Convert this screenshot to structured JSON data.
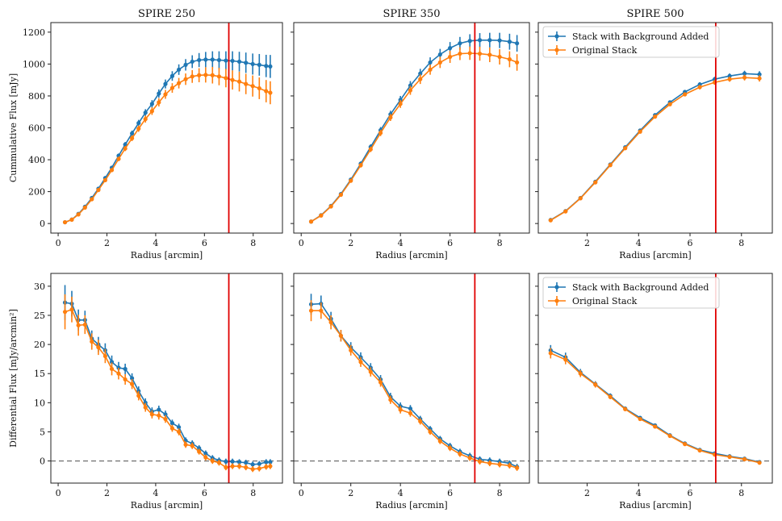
{
  "colors": {
    "blue": "#1f77b4",
    "orange": "#ff7f0e",
    "vline": "#e00000",
    "dashed": "#777777",
    "axis": "#222222",
    "legend_border": "#cccccc"
  },
  "chart_data": [
    {
      "type": "line",
      "panel": "top-1",
      "title": "SPIRE 250",
      "xlabel": "Radius [arcmin]",
      "ylabel": "Cummulative Flux [mJy]",
      "xlim": [
        -0.3,
        9.2
      ],
      "ylim": [
        -60,
        1260
      ],
      "xticks": [
        0,
        2,
        4,
        6,
        8
      ],
      "yticks": [
        0,
        200,
        400,
        600,
        800,
        1000,
        1200
      ],
      "vline": 7,
      "hline": null,
      "legend": false,
      "series": [
        {
          "name": "Stack with Background Added",
          "color": "#1f77b4",
          "x": [
            0.28,
            0.56,
            0.83,
            1.1,
            1.38,
            1.65,
            1.93,
            2.2,
            2.48,
            2.75,
            3.03,
            3.3,
            3.58,
            3.85,
            4.13,
            4.4,
            4.68,
            4.95,
            5.23,
            5.5,
            5.78,
            6.05,
            6.33,
            6.6,
            6.88,
            7.15,
            7.43,
            7.7,
            7.98,
            8.25,
            8.53,
            8.7
          ],
          "y": [
            8,
            25,
            60,
            105,
            160,
            218,
            285,
            350,
            425,
            495,
            565,
            630,
            695,
            750,
            815,
            875,
            925,
            965,
            995,
            1015,
            1025,
            1028,
            1028,
            1025,
            1022,
            1020,
            1015,
            1008,
            1000,
            995,
            988,
            985
          ],
          "err": [
            2,
            3,
            5,
            6,
            8,
            9,
            11,
            12,
            14,
            16,
            18,
            20,
            22,
            24,
            26,
            28,
            30,
            33,
            36,
            40,
            44,
            48,
            52,
            55,
            58,
            60,
            62,
            64,
            66,
            68,
            70,
            72
          ]
        },
        {
          "name": "Original Stack",
          "color": "#ff7f0e",
          "x": [
            0.28,
            0.56,
            0.83,
            1.1,
            1.38,
            1.65,
            1.93,
            2.2,
            2.48,
            2.75,
            3.03,
            3.3,
            3.58,
            3.85,
            4.13,
            4.4,
            4.68,
            4.95,
            5.23,
            5.5,
            5.78,
            6.05,
            6.33,
            6.6,
            6.88,
            7.15,
            7.43,
            7.7,
            7.98,
            8.25,
            8.53,
            8.7
          ],
          "y": [
            8,
            24,
            57,
            100,
            152,
            210,
            272,
            335,
            405,
            470,
            535,
            595,
            655,
            705,
            760,
            810,
            850,
            880,
            905,
            922,
            930,
            932,
            930,
            922,
            912,
            900,
            890,
            875,
            862,
            848,
            830,
            820
          ],
          "err": [
            2,
            3,
            5,
            6,
            8,
            9,
            11,
            12,
            14,
            16,
            18,
            20,
            22,
            24,
            26,
            28,
            30,
            33,
            36,
            40,
            44,
            48,
            52,
            55,
            58,
            60,
            62,
            64,
            66,
            68,
            70,
            72
          ]
        }
      ]
    },
    {
      "type": "line",
      "panel": "top-2",
      "title": "SPIRE 350",
      "xlabel": "Radius [arcmin]",
      "ylabel": "",
      "xlim": [
        -0.3,
        9.2
      ],
      "ylim": [
        -60,
        1260
      ],
      "xticks": [
        0,
        2,
        4,
        6,
        8
      ],
      "yticks": [],
      "vline": 7,
      "hline": null,
      "legend": false,
      "series": [
        {
          "name": "Stack with Background Added",
          "color": "#1f77b4",
          "x": [
            0.4,
            0.8,
            1.2,
            1.6,
            2.0,
            2.4,
            2.8,
            3.2,
            3.6,
            4.0,
            4.4,
            4.8,
            5.2,
            5.6,
            6.0,
            6.4,
            6.8,
            7.2,
            7.6,
            8.0,
            8.4,
            8.7
          ],
          "y": [
            12,
            52,
            110,
            185,
            275,
            375,
            480,
            585,
            685,
            775,
            865,
            940,
            1010,
            1060,
            1100,
            1130,
            1145,
            1150,
            1150,
            1148,
            1140,
            1130
          ],
          "err": [
            3,
            5,
            7,
            10,
            12,
            14,
            17,
            20,
            22,
            25,
            28,
            30,
            32,
            35,
            38,
            40,
            42,
            44,
            46,
            48,
            50,
            52
          ]
        },
        {
          "name": "Original Stack",
          "color": "#ff7f0e",
          "x": [
            0.4,
            0.8,
            1.2,
            1.6,
            2.0,
            2.4,
            2.8,
            3.2,
            3.6,
            4.0,
            4.4,
            4.8,
            5.2,
            5.6,
            6.0,
            6.4,
            6.8,
            7.2,
            7.6,
            8.0,
            8.4,
            8.7
          ],
          "y": [
            12,
            50,
            107,
            180,
            268,
            365,
            465,
            568,
            665,
            750,
            835,
            905,
            965,
            1010,
            1045,
            1065,
            1068,
            1065,
            1058,
            1045,
            1030,
            1010
          ],
          "err": [
            3,
            5,
            7,
            10,
            12,
            14,
            17,
            20,
            22,
            25,
            28,
            30,
            32,
            35,
            38,
            40,
            42,
            44,
            46,
            48,
            50,
            52
          ]
        }
      ]
    },
    {
      "type": "line",
      "panel": "top-3",
      "title": "SPIRE 500",
      "xlabel": "Radius [arcmin]",
      "ylabel": "",
      "xlim": [
        0.1,
        9.2
      ],
      "ylim": [
        -60,
        1260
      ],
      "xticks": [
        2,
        4,
        6,
        8
      ],
      "yticks": [],
      "vline": 7,
      "hline": null,
      "legend": true,
      "series": [
        {
          "name": "Stack with Background Added",
          "color": "#1f77b4",
          "x": [
            0.58,
            1.16,
            1.74,
            2.32,
            2.9,
            3.48,
            4.06,
            4.64,
            5.22,
            5.8,
            6.38,
            6.96,
            7.54,
            8.12,
            8.7
          ],
          "y": [
            22,
            78,
            160,
            262,
            370,
            478,
            583,
            680,
            760,
            825,
            872,
            905,
            925,
            940,
            935
          ],
          "err": [
            3,
            4,
            5,
            6,
            7,
            8,
            9,
            10,
            11,
            12,
            14,
            15,
            16,
            18,
            20
          ]
        },
        {
          "name": "Original Stack",
          "color": "#ff7f0e",
          "x": [
            0.58,
            1.16,
            1.74,
            2.32,
            2.9,
            3.48,
            4.06,
            4.64,
            5.22,
            5.8,
            6.38,
            6.96,
            7.54,
            8.12,
            8.7
          ],
          "y": [
            20,
            76,
            158,
            258,
            366,
            472,
            576,
            670,
            748,
            810,
            855,
            885,
            905,
            915,
            910
          ],
          "err": [
            3,
            4,
            5,
            6,
            7,
            8,
            9,
            10,
            11,
            12,
            14,
            15,
            16,
            18,
            20
          ]
        }
      ]
    },
    {
      "type": "line",
      "panel": "bottom-1",
      "title": "",
      "xlabel": "Radius [arcmin]",
      "ylabel": "Differential Flux [mJy/arcmin²]",
      "xlim": [
        -0.3,
        9.2
      ],
      "ylim": [
        -3.8,
        32.2
      ],
      "xticks": [
        0,
        2,
        4,
        6,
        8
      ],
      "yticks": [
        0,
        5,
        10,
        15,
        20,
        25,
        30
      ],
      "vline": 7,
      "hline": 0,
      "legend": false,
      "series": [
        {
          "name": "Stack with Background Added",
          "color": "#1f77b4",
          "x": [
            0.28,
            0.56,
            0.83,
            1.1,
            1.38,
            1.65,
            1.93,
            2.2,
            2.48,
            2.75,
            3.03,
            3.3,
            3.58,
            3.85,
            4.13,
            4.4,
            4.68,
            4.95,
            5.23,
            5.5,
            5.78,
            6.05,
            6.33,
            6.6,
            6.88,
            7.15,
            7.43,
            7.7,
            7.98,
            8.25,
            8.53,
            8.7
          ],
          "y": [
            27.2,
            27,
            24.2,
            24.2,
            21,
            20,
            19,
            17,
            16,
            15.8,
            14.2,
            12,
            10,
            8.5,
            8.8,
            8,
            6.5,
            5.8,
            3.5,
            3,
            2.2,
            1.3,
            0.5,
            0.1,
            -0.1,
            -0.1,
            -0.2,
            -0.3,
            -0.6,
            -0.5,
            -0.2,
            -0.2
          ],
          "err": [
            3,
            2.2,
            1.8,
            1.6,
            1.4,
            1.3,
            1.2,
            1.1,
            1.0,
            0.9,
            0.85,
            0.8,
            0.75,
            0.7,
            0.7,
            0.65,
            0.6,
            0.6,
            0.55,
            0.55,
            0.5,
            0.5,
            0.5,
            0.5,
            0.5,
            0.5,
            0.5,
            0.5,
            0.5,
            0.5,
            0.5,
            0.5
          ]
        },
        {
          "name": "Original Stack",
          "color": "#ff7f0e",
          "x": [
            0.28,
            0.56,
            0.83,
            1.1,
            1.38,
            1.65,
            1.93,
            2.2,
            2.48,
            2.75,
            3.03,
            3.3,
            3.58,
            3.85,
            4.13,
            4.4,
            4.68,
            4.95,
            5.23,
            5.5,
            5.78,
            6.05,
            6.33,
            6.6,
            6.88,
            7.15,
            7.43,
            7.7,
            7.98,
            8.25,
            8.53,
            8.7
          ],
          "y": [
            25.6,
            26,
            23.3,
            23.4,
            20.5,
            19.5,
            18,
            15.8,
            15,
            14,
            13.2,
            11.2,
            9.2,
            8,
            7.8,
            7.2,
            5.6,
            5,
            2.8,
            2.6,
            1.6,
            0.6,
            0,
            -0.3,
            -1.1,
            -0.9,
            -0.9,
            -1.1,
            -1.4,
            -1.3,
            -1,
            -0.9
          ],
          "err": [
            3,
            2.2,
            1.8,
            1.6,
            1.4,
            1.3,
            1.2,
            1.1,
            1.0,
            0.9,
            0.85,
            0.8,
            0.75,
            0.7,
            0.7,
            0.65,
            0.6,
            0.6,
            0.55,
            0.55,
            0.5,
            0.5,
            0.5,
            0.5,
            0.5,
            0.5,
            0.5,
            0.5,
            0.5,
            0.5,
            0.5,
            0.5
          ]
        }
      ]
    },
    {
      "type": "line",
      "panel": "bottom-2",
      "title": "",
      "xlabel": "Radius [arcmin]",
      "ylabel": "",
      "xlim": [
        -0.3,
        9.2
      ],
      "ylim": [
        -3.8,
        32.2
      ],
      "xticks": [
        0,
        2,
        4,
        6,
        8
      ],
      "yticks": [],
      "vline": 7,
      "hline": 0,
      "legend": false,
      "series": [
        {
          "name": "Stack with Background Added",
          "color": "#1f77b4",
          "x": [
            0.4,
            0.8,
            1.2,
            1.6,
            2.0,
            2.4,
            2.8,
            3.2,
            3.6,
            4.0,
            4.4,
            4.8,
            5.2,
            5.6,
            6.0,
            6.4,
            6.8,
            7.2,
            7.6,
            8.0,
            8.4,
            8.7
          ],
          "y": [
            26.9,
            27,
            24.4,
            21.5,
            19.5,
            17.8,
            16,
            14,
            11,
            9.4,
            9,
            7.2,
            5.5,
            3.8,
            2.6,
            1.6,
            0.9,
            0.3,
            0.1,
            -0.1,
            -0.4,
            -1
          ],
          "err": [
            1.8,
            1.4,
            1.2,
            1.0,
            0.9,
            0.85,
            0.8,
            0.75,
            0.7,
            0.65,
            0.6,
            0.55,
            0.5,
            0.5,
            0.5,
            0.5,
            0.5,
            0.5,
            0.5,
            0.5,
            0.5,
            0.5
          ]
        },
        {
          "name": "Original Stack",
          "color": "#ff7f0e",
          "x": [
            0.4,
            0.8,
            1.2,
            1.6,
            2.0,
            2.4,
            2.8,
            3.2,
            3.6,
            4.0,
            4.4,
            4.8,
            5.2,
            5.6,
            6.0,
            6.4,
            6.8,
            7.2,
            7.6,
            8.0,
            8.4,
            8.7
          ],
          "y": [
            25.8,
            25.8,
            23.8,
            21.5,
            19,
            17,
            15.3,
            13.5,
            10.5,
            8.8,
            8.2,
            6.8,
            5,
            3.4,
            2.2,
            1.2,
            0.5,
            -0.1,
            -0.4,
            -0.6,
            -0.8,
            -1.2
          ],
          "err": [
            1.8,
            1.4,
            1.2,
            1.0,
            0.9,
            0.85,
            0.8,
            0.75,
            0.7,
            0.65,
            0.6,
            0.55,
            0.5,
            0.5,
            0.5,
            0.5,
            0.5,
            0.5,
            0.5,
            0.5,
            0.5,
            0.5
          ]
        }
      ]
    },
    {
      "type": "line",
      "panel": "bottom-3",
      "title": "",
      "xlabel": "Radius [arcmin]",
      "ylabel": "",
      "xlim": [
        0.1,
        9.2
      ],
      "ylim": [
        -3.8,
        32.2
      ],
      "xticks": [
        2,
        4,
        6,
        8
      ],
      "yticks": [],
      "vline": 7,
      "hline": 0,
      "legend": true,
      "series": [
        {
          "name": "Stack with Background Added",
          "color": "#1f77b4",
          "x": [
            0.58,
            1.16,
            1.74,
            2.32,
            2.9,
            3.48,
            4.06,
            4.64,
            5.22,
            5.8,
            6.38,
            6.96,
            7.54,
            8.12,
            8.7
          ],
          "y": [
            19,
            17.8,
            15.2,
            13.2,
            11.2,
            9,
            7.4,
            6.1,
            4.4,
            3,
            1.9,
            1.3,
            0.8,
            0.4,
            -0.2
          ],
          "err": [
            0.9,
            0.8,
            0.6,
            0.5,
            0.4,
            0.35,
            0.3,
            0.3,
            0.25,
            0.25,
            0.2,
            0.2,
            0.2,
            0.2,
            0.2
          ]
        },
        {
          "name": "Original Stack",
          "color": "#ff7f0e",
          "x": [
            0.58,
            1.16,
            1.74,
            2.32,
            2.9,
            3.48,
            4.06,
            4.64,
            5.22,
            5.8,
            6.38,
            6.96,
            7.54,
            8.12,
            8.7
          ],
          "y": [
            18.5,
            17.4,
            15,
            13.1,
            11,
            8.9,
            7.2,
            5.9,
            4.3,
            2.9,
            1.8,
            1.1,
            0.7,
            0.3,
            -0.3
          ],
          "err": [
            0.9,
            0.8,
            0.6,
            0.5,
            0.4,
            0.35,
            0.3,
            0.3,
            0.25,
            0.25,
            0.2,
            0.2,
            0.2,
            0.2,
            0.2
          ]
        }
      ]
    }
  ]
}
